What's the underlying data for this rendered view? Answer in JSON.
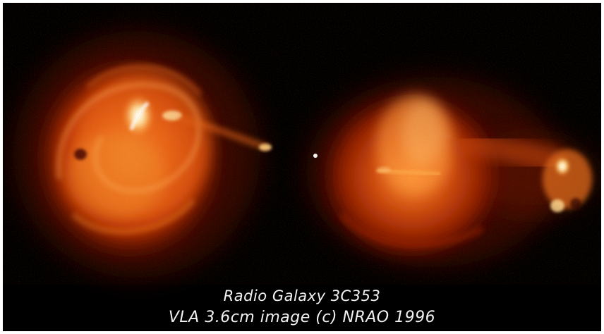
{
  "image": {
    "subject": "radio-galaxy",
    "background_color": "#000000",
    "palette": [
      "#5a0a00",
      "#a82400",
      "#e05a10",
      "#ff9a30",
      "#ffe6a0",
      "#ffffff"
    ]
  },
  "caption": {
    "line1": "Radio Galaxy 3C353",
    "line2": "VLA 3.6cm image (c) NRAO 1996"
  }
}
